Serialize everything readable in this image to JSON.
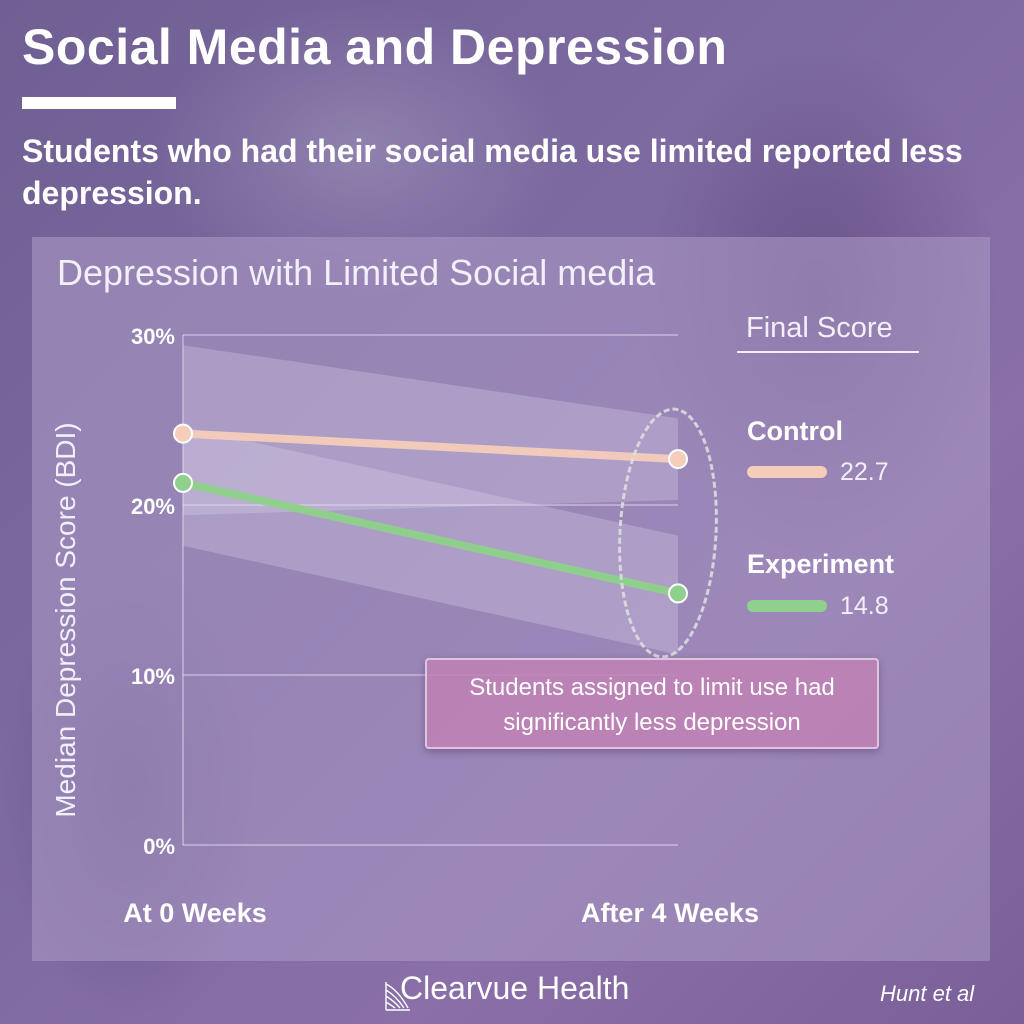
{
  "header": {
    "title": "Social Media and Depression",
    "subtitle": "Students who had their social media use limited reported less depression."
  },
  "colors": {
    "control": "#f6cdbb",
    "experiment": "#8fd18c",
    "callout_bg": "#be82b4"
  },
  "chart_data": {
    "type": "line",
    "title": "Depression with Limited Social media",
    "xlabel": "",
    "ylabel": "Median Depression Score (BDI)",
    "categories": [
      "At 0 Weeks",
      "After 4 Weeks"
    ],
    "ylim": [
      0,
      30
    ],
    "yticks": [
      "0%",
      "10%",
      "20%",
      "30%"
    ],
    "ytick_values": [
      0,
      10,
      20,
      30
    ],
    "grid": true,
    "series": [
      {
        "name": "Control",
        "values": [
          24.2,
          22.7
        ],
        "band": [
          [
            19.4,
            29.4
          ],
          [
            20.3,
            25.1
          ]
        ]
      },
      {
        "name": "Experiment",
        "values": [
          21.3,
          14.8
        ],
        "band": [
          [
            17.6,
            24.6
          ],
          [
            11.2,
            18.2
          ]
        ]
      }
    ],
    "legend_title": "Final Score",
    "legend_values": [
      "22.7",
      "14.8"
    ],
    "legend": "right",
    "annotation": "Students assigned to limit use had significantly less depression"
  },
  "footer": {
    "brand": "Clearvue Health",
    "source": "Hunt et al"
  }
}
